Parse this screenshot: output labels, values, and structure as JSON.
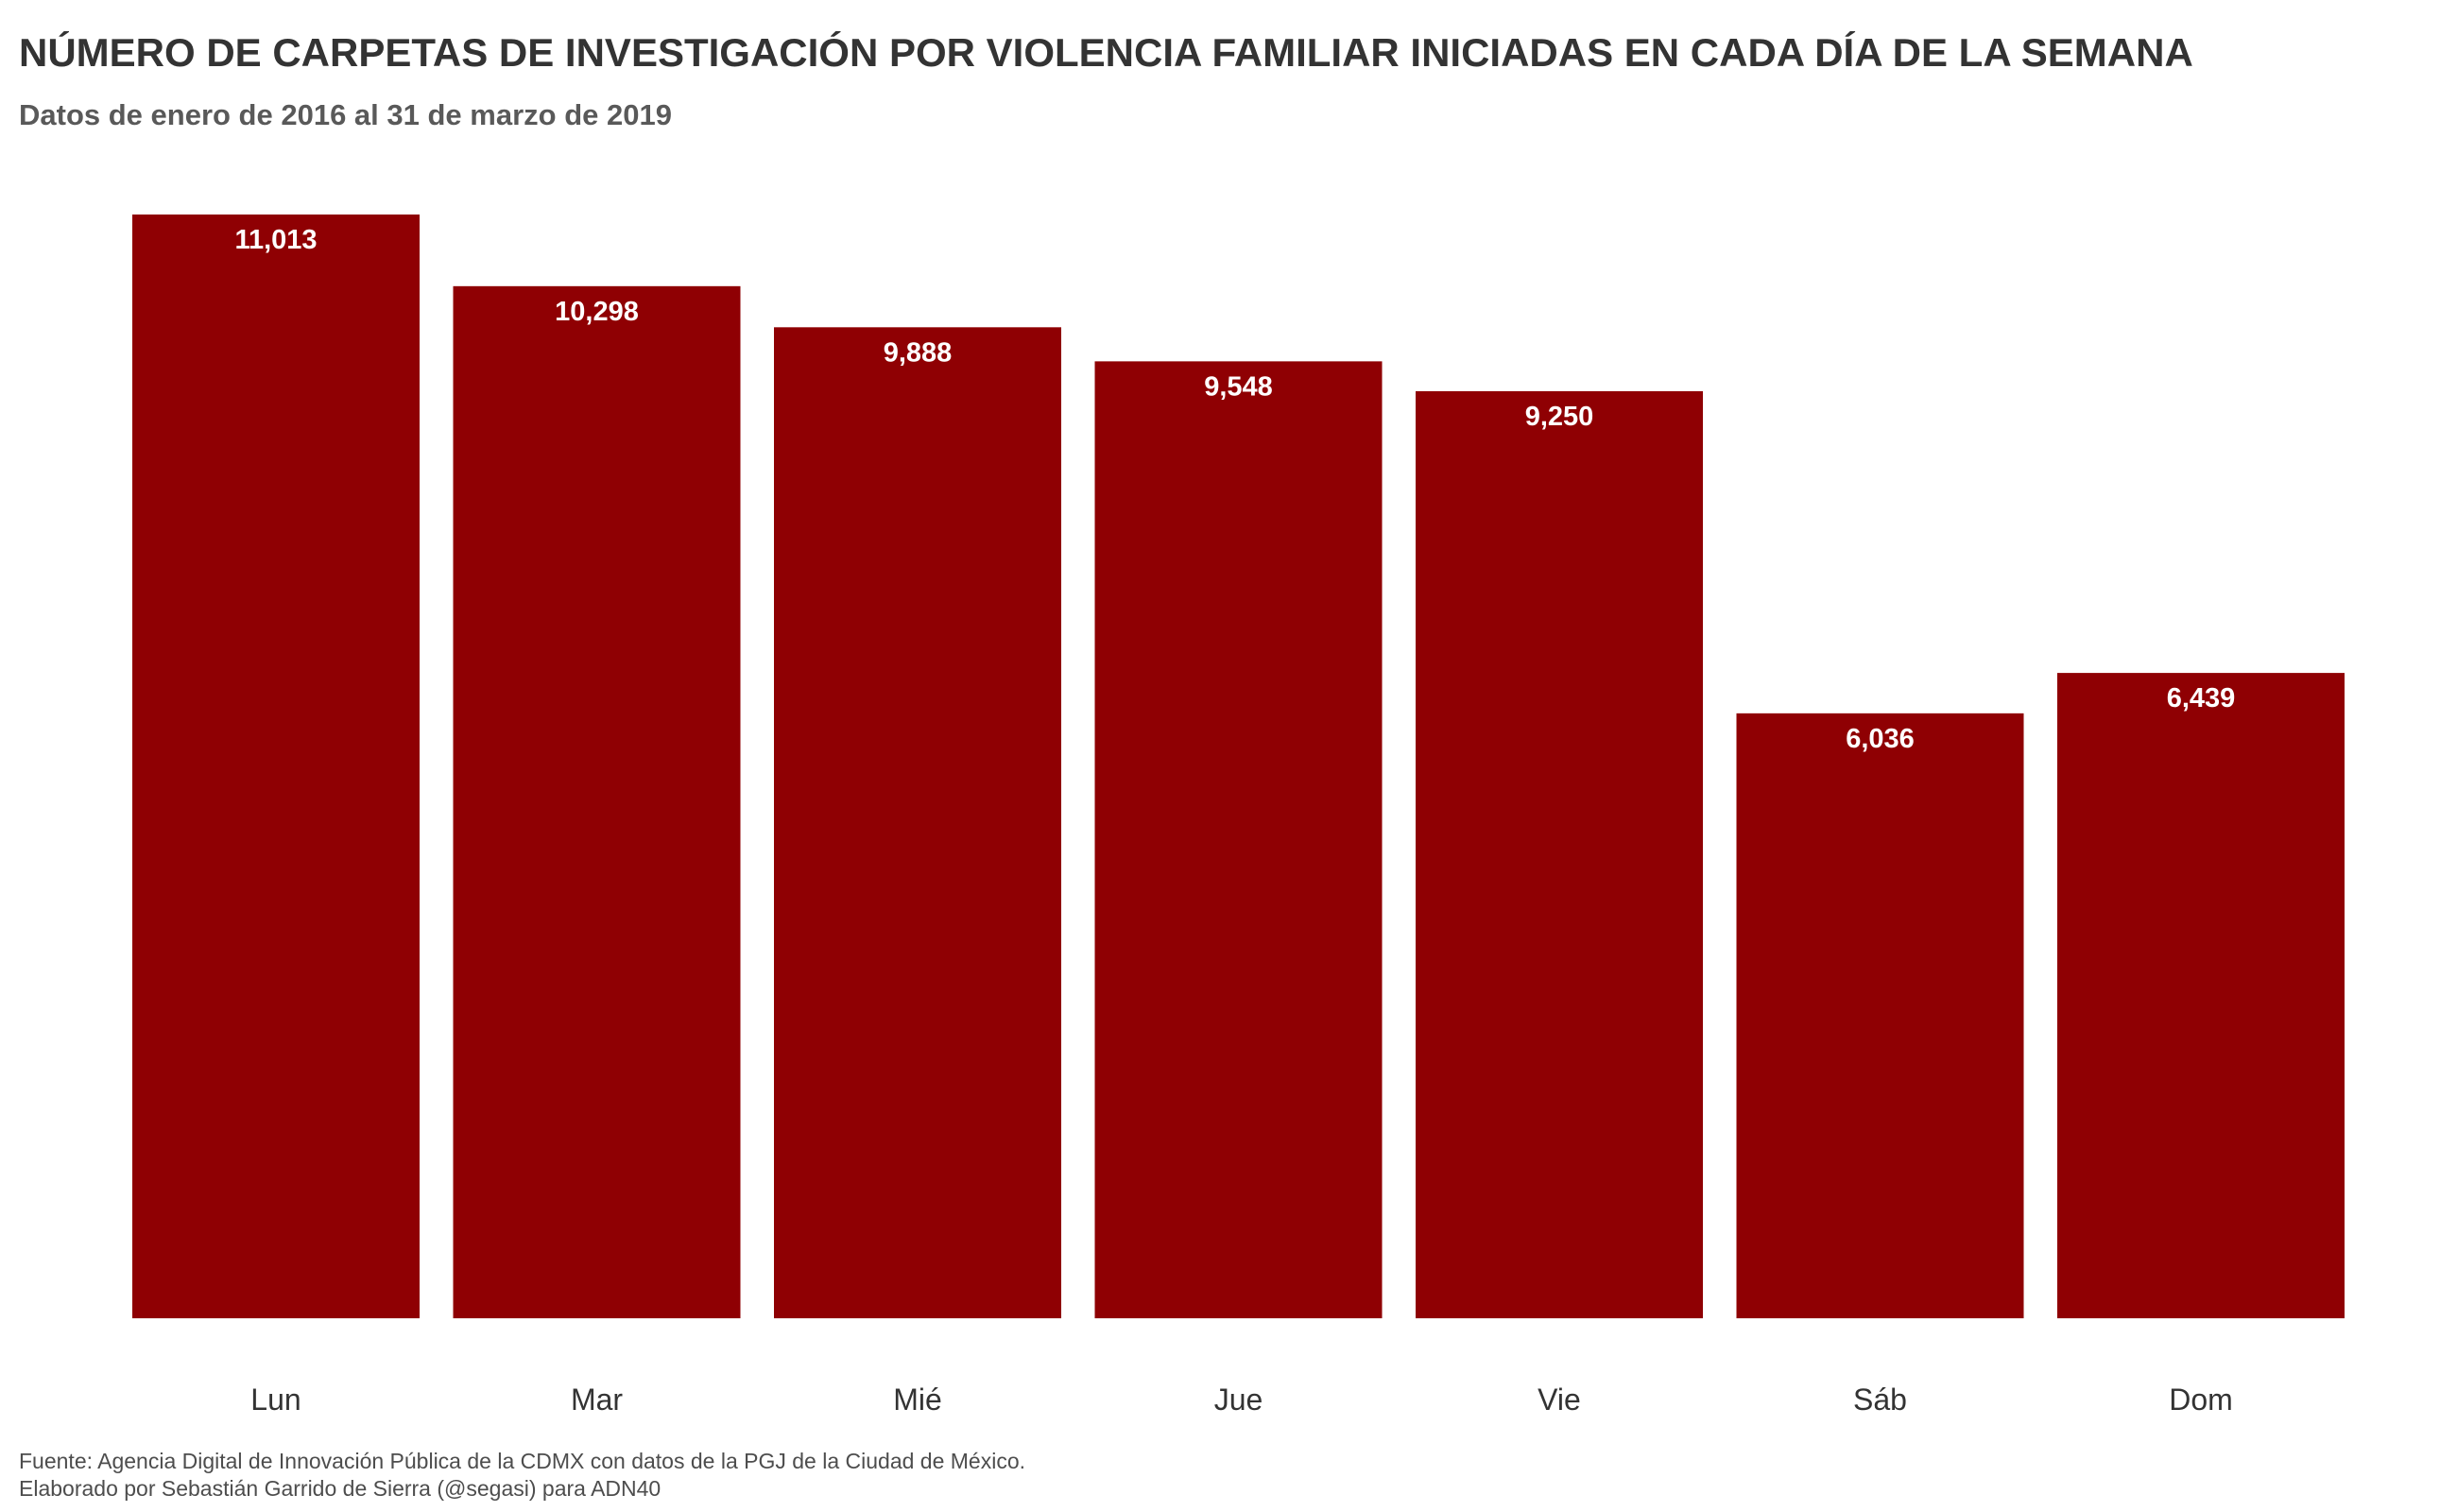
{
  "title": "NÚMERO DE CARPETAS DE INVESTIGACIÓN POR VIOLENCIA FAMILIAR INICIADAS EN CADA DÍA DE LA SEMANA",
  "subtitle": "Datos de enero de 2016 al 31 de marzo de 2019",
  "caption": {
    "line1": "Fuente: Agencia Digital de Innovación Pública de la CDMX con datos de la PGJ de la Ciudad de México.",
    "line2": "Elaborado por Sebastián Garrido de Sierra (@segasi) para ADN40"
  },
  "colors": {
    "bar": "#8f0003",
    "bar_label": "#ffffff",
    "tick_label": "#333333",
    "title": "#333333"
  },
  "chart_data": {
    "type": "bar",
    "title": "NÚMERO DE CARPETAS DE INVESTIGACIÓN POR VIOLENCIA FAMILIAR INICIADAS EN CADA DÍA DE LA SEMANA",
    "subtitle": "Datos de enero de 2016 al 31 de marzo de 2019",
    "xlabel": "",
    "ylabel": "",
    "categories": [
      "Lun",
      "Mar",
      "Mié",
      "Jue",
      "Vie",
      "Sáb",
      "Dom"
    ],
    "values": [
      11013,
      10298,
      9888,
      9548,
      9250,
      6036,
      6439
    ],
    "value_labels": [
      "11,013",
      "10,298",
      "9,888",
      "9,548",
      "9,250",
      "6,036",
      "6,439"
    ],
    "ylim": [
      0,
      11013
    ],
    "grid": false,
    "legend": "none",
    "y_axis_visible": false
  }
}
